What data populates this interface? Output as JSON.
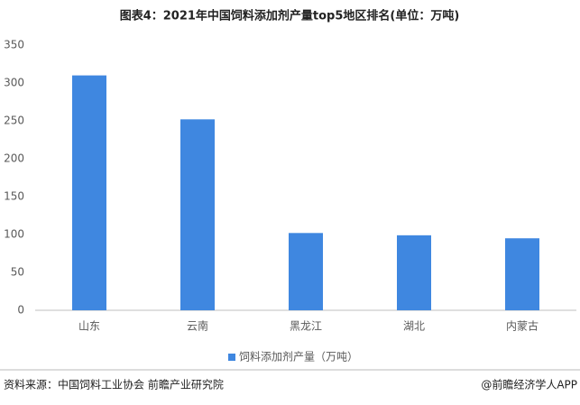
{
  "chart_data": {
    "type": "bar",
    "title": "图表4：2021年中国饲料添加剂产量top5地区排名(单位：万吨)",
    "categories": [
      "山东",
      "云南",
      "黑龙江",
      "湖北",
      "内蒙古"
    ],
    "series": [
      {
        "name": "饲料添加剂产量（万吨）",
        "color": "#3f87e0",
        "values": [
          310,
          252,
          102,
          99,
          95
        ]
      }
    ],
    "ylim": [
      0,
      350
    ],
    "yticks": [
      0,
      50,
      100,
      150,
      200,
      250,
      300,
      350
    ],
    "grid": false,
    "legend": "bottom"
  },
  "footer": {
    "source": "资料来源：中国饲料工业协会 前瞻产业研究院",
    "credit": "@前瞻经济学人APP"
  }
}
